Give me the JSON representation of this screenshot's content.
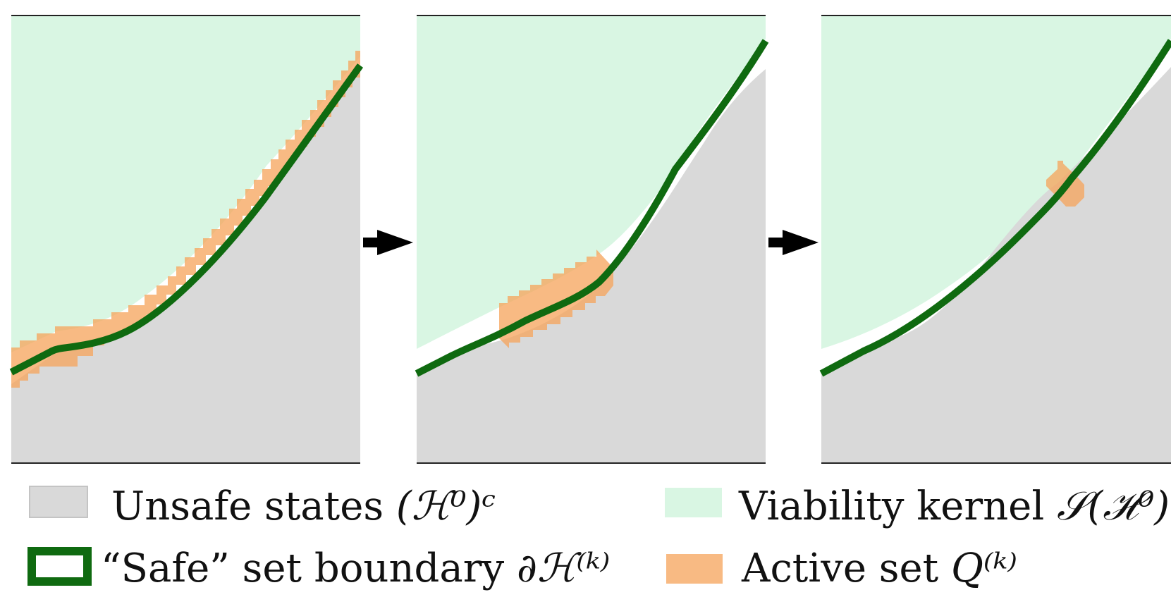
{
  "colors": {
    "unsafe": "#d9d9d9",
    "unsafe_border": "#c4c4c4",
    "viability": "#d9f6e3",
    "active": "#f5a35a",
    "boundary": "#0f6a10",
    "arrow": "#000000",
    "frame": "#222222"
  },
  "figure": {
    "panels": [
      {
        "name": "panel-1",
        "state": "initial"
      },
      {
        "name": "panel-2",
        "state": "intermediate"
      },
      {
        "name": "panel-3",
        "state": "converged"
      }
    ],
    "arrows": [
      "arrow-1",
      "arrow-2"
    ]
  },
  "legend": {
    "unsafe": {
      "text": "Unsafe states",
      "math": "(ℋ⁰)ᶜ"
    },
    "viability": {
      "text": "Viability kernel",
      "math": "𝒮(ℋ⁰)"
    },
    "boundary": {
      "text": "“Safe” set boundary",
      "math": "∂ℋ⁽ᵏ⁾"
    },
    "active": {
      "text": "Active set",
      "math": "Q⁽ᵏ⁾"
    }
  }
}
